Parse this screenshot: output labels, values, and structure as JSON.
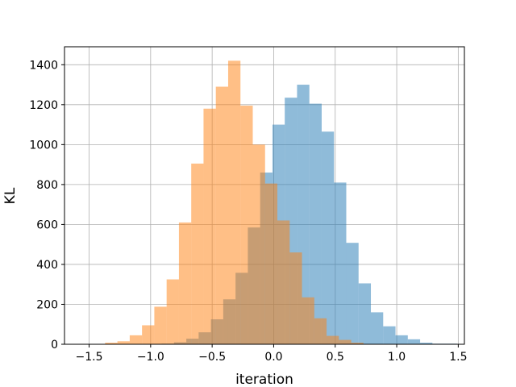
{
  "chart_data": {
    "type": "histogram",
    "title": "",
    "xlabel": "iteration",
    "ylabel": "KL",
    "xlim": [
      -1.7,
      1.55
    ],
    "ylim": [
      0,
      1490
    ],
    "xticks": [
      -1.5,
      -1.0,
      -0.5,
      0.0,
      0.5,
      1.0,
      1.5
    ],
    "xtick_labels": [
      "−1.5",
      "−1.0",
      "−0.5",
      "0.0",
      "0.5",
      "1.0",
      "1.5"
    ],
    "yticks": [
      0,
      200,
      400,
      600,
      800,
      1000,
      1200,
      1400
    ],
    "ytick_labels": [
      "0",
      "200",
      "400",
      "600",
      "800",
      "1000",
      "1200",
      "1400"
    ],
    "grid": true,
    "legend": "none",
    "series": [
      {
        "color": "#1f77b4",
        "opacity": 0.5,
        "bin_width": 0.1,
        "bins": [
          [
            -0.91,
            3
          ],
          [
            -0.81,
            10
          ],
          [
            -0.71,
            28
          ],
          [
            -0.61,
            60
          ],
          [
            -0.51,
            125
          ],
          [
            -0.41,
            225
          ],
          [
            -0.31,
            358
          ],
          [
            -0.21,
            585
          ],
          [
            -0.11,
            860
          ],
          [
            -0.01,
            1100
          ],
          [
            0.09,
            1235
          ],
          [
            0.19,
            1300
          ],
          [
            0.29,
            1205
          ],
          [
            0.39,
            1065
          ],
          [
            0.49,
            810
          ],
          [
            0.59,
            508
          ],
          [
            0.69,
            305
          ],
          [
            0.79,
            160
          ],
          [
            0.89,
            90
          ],
          [
            0.99,
            45
          ],
          [
            1.09,
            25
          ],
          [
            1.19,
            8
          ],
          [
            1.29,
            3
          ],
          [
            1.39,
            3
          ]
        ]
      },
      {
        "color": "#ff7f0e",
        "opacity": 0.5,
        "bin_width": 0.1,
        "bins": [
          [
            -1.37,
            8
          ],
          [
            -1.27,
            15
          ],
          [
            -1.17,
            45
          ],
          [
            -1.07,
            95
          ],
          [
            -0.97,
            188
          ],
          [
            -0.87,
            325
          ],
          [
            -0.77,
            610
          ],
          [
            -0.67,
            905
          ],
          [
            -0.57,
            1180
          ],
          [
            -0.47,
            1290
          ],
          [
            -0.37,
            1420
          ],
          [
            -0.27,
            1195
          ],
          [
            -0.17,
            1000
          ],
          [
            -0.07,
            805
          ],
          [
            0.03,
            620
          ],
          [
            0.13,
            460
          ],
          [
            0.23,
            235
          ],
          [
            0.33,
            130
          ],
          [
            0.43,
            42
          ],
          [
            0.53,
            22
          ],
          [
            0.63,
            8
          ]
        ]
      }
    ]
  }
}
